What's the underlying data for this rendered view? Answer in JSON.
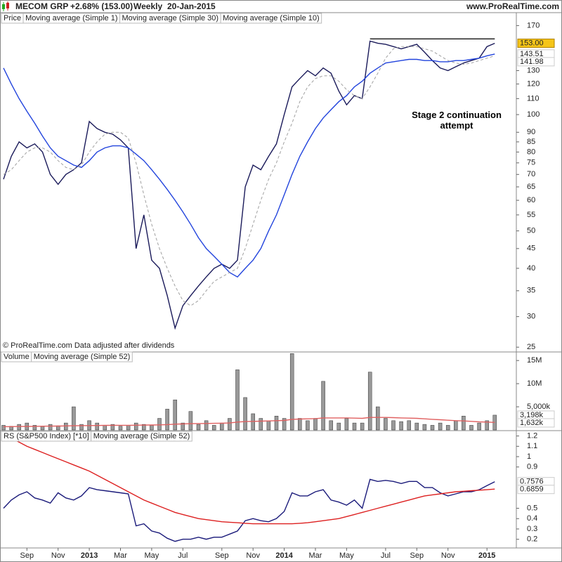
{
  "header": {
    "name": "MECOM GRP",
    "change": "+2.68% (153.00)",
    "period": "Weekly",
    "date": "20-Jan-2015",
    "site": "www.ProRealTime.com"
  },
  "chart_data": [
    {
      "type": "line",
      "label": "Price",
      "log_scale": true,
      "ylim": [
        24.4,
        171
      ],
      "yticks": [
        25,
        30,
        35,
        40,
        45,
        50,
        55,
        60,
        65,
        70,
        75,
        80,
        85,
        90,
        100,
        110,
        120,
        130,
        170
      ],
      "annotation": "Stage 2 continuation attempt",
      "footnote": "© ProRealTime.com  Data adjusted after dividends",
      "resistance": 157,
      "series": [
        {
          "name": "Moving average (Simple 1)",
          "color": "#1a1a5a",
          "last_label": "153.00",
          "label_background": "#f5c518",
          "values": [
            68,
            78,
            85,
            82,
            84,
            80,
            70,
            66,
            70,
            72,
            75,
            96,
            92,
            90,
            89,
            86,
            82,
            45,
            55,
            42,
            40,
            34,
            28,
            32,
            34,
            36,
            38,
            40,
            41,
            40,
            42,
            65,
            74,
            72,
            78,
            84,
            100,
            118,
            124,
            130,
            126,
            132,
            128,
            115,
            106,
            112,
            110,
            155,
            153,
            152,
            150,
            148,
            150,
            152,
            145,
            138,
            132,
            130,
            133,
            136,
            138,
            140,
            150,
            153
          ]
        },
        {
          "name": "Moving average (Simple 30)",
          "color": "#2244dd",
          "last_label": "143.51",
          "values": [
            132,
            120,
            110,
            102,
            95,
            88,
            82,
            78,
            76,
            74,
            73,
            76,
            80,
            82,
            83,
            83,
            82,
            79,
            76,
            72,
            68,
            64,
            60,
            56,
            52,
            48,
            45,
            43,
            41,
            39,
            38,
            40,
            42,
            45,
            50,
            55,
            62,
            70,
            78,
            85,
            92,
            98,
            103,
            108,
            112,
            118,
            122,
            128,
            132,
            136,
            137,
            138,
            139,
            139,
            138,
            138,
            137,
            137,
            138,
            138,
            139,
            140,
            142,
            143.51
          ]
        },
        {
          "name": "Moving average (Simple 10)",
          "color": "#a0a0a0",
          "dashed": true,
          "last_label": "141.98",
          "values": [
            70,
            72,
            76,
            80,
            82,
            82,
            80,
            76,
            73,
            72,
            74,
            80,
            85,
            89,
            90,
            90,
            87,
            75,
            62,
            52,
            45,
            40,
            36,
            33,
            32,
            33,
            35,
            37,
            38,
            39,
            40,
            45,
            52,
            60,
            68,
            75,
            85,
            95,
            108,
            118,
            124,
            126,
            126,
            122,
            116,
            112,
            110,
            118,
            128,
            140,
            148,
            150,
            150,
            150,
            148,
            146,
            142,
            138,
            136,
            135,
            136,
            138,
            140,
            141.98
          ]
        }
      ]
    },
    {
      "type": "bar",
      "ylim": [
        0,
        16700000
      ],
      "yticks": [
        {
          "value": 5000000,
          "label": "5,000k"
        },
        {
          "value": 10000000,
          "label": "10M"
        },
        {
          "value": 15000000,
          "label": "15M"
        }
      ],
      "series": [
        {
          "name": "Volume",
          "color": "#999999",
          "last_label": "3,198k",
          "values": [
            1000000,
            800000,
            1200000,
            1500000,
            1000000,
            800000,
            1200000,
            900000,
            1500000,
            5000000,
            1200000,
            2000000,
            1500000,
            1000000,
            1200000,
            800000,
            1000000,
            1500000,
            1200000,
            1000000,
            2500000,
            4500000,
            6500000,
            1500000,
            4000000,
            1200000,
            2000000,
            1000000,
            1500000,
            2500000,
            13000000,
            7000000,
            3500000,
            2500000,
            2000000,
            3000000,
            2500000,
            16500000,
            2500000,
            2000000,
            2500000,
            10500000,
            2000000,
            1500000,
            2500000,
            1500000,
            1500000,
            12500000,
            5000000,
            2500000,
            2000000,
            1800000,
            2000000,
            1500000,
            1200000,
            1000000,
            1500000,
            1000000,
            2000000,
            3000000,
            1000000,
            1500000,
            2000000,
            3198000
          ]
        },
        {
          "name": "Moving average (Simple 52)",
          "color": "#e06060",
          "type": "line",
          "last_label": "1,632k",
          "values": [
            700000,
            720000,
            740000,
            760000,
            780000,
            800000,
            820000,
            840000,
            860000,
            900000,
            920000,
            940000,
            960000,
            980000,
            1000000,
            1000000,
            1000000,
            1020000,
            1040000,
            1060000,
            1100000,
            1150000,
            1250000,
            1300000,
            1350000,
            1380000,
            1400000,
            1420000,
            1450000,
            1500000,
            1700000,
            1800000,
            1850000,
            1900000,
            1950000,
            2000000,
            2050000,
            2300000,
            2350000,
            2400000,
            2450000,
            2600000,
            2600000,
            2600000,
            2600000,
            2550000,
            2500000,
            2700000,
            2700000,
            2700000,
            2650000,
            2600000,
            2550000,
            2500000,
            2400000,
            2300000,
            2200000,
            2100000,
            2000000,
            1950000,
            1850000,
            1750000,
            1700000,
            1632000
          ]
        }
      ]
    },
    {
      "type": "line",
      "ylim": [
        0.116,
        1.245
      ],
      "yticks": [
        0.2,
        0.3,
        0.4,
        0.5,
        0.9,
        1,
        1.1,
        1.2
      ],
      "categories": [
        null,
        null,
        null,
        "Sep",
        null,
        null,
        null,
        "Nov",
        null,
        null,
        null,
        "2013",
        null,
        null,
        null,
        "Mar",
        null,
        null,
        null,
        "May",
        null,
        null,
        null,
        "Jul",
        null,
        null,
        null,
        null,
        "Sep",
        null,
        null,
        null,
        "Nov",
        null,
        null,
        null,
        "2014",
        null,
        null,
        null,
        "Mar",
        null,
        null,
        null,
        "May",
        null,
        null,
        null,
        null,
        "Jul",
        null,
        null,
        null,
        "Sep",
        null,
        null,
        null,
        "Nov",
        null,
        null,
        null,
        null,
        "2015",
        null
      ],
      "series": [
        {
          "name": "RS (S&P500 Index) [*10]",
          "color": "#1a1a7a",
          "last_label": "0.7576",
          "values": [
            0.5,
            0.58,
            0.63,
            0.66,
            0.6,
            0.58,
            0.55,
            0.65,
            0.6,
            0.58,
            0.62,
            0.7,
            0.68,
            0.67,
            0.66,
            0.65,
            0.64,
            0.33,
            0.35,
            0.28,
            0.26,
            0.21,
            0.18,
            0.2,
            0.2,
            0.22,
            0.2,
            0.22,
            0.22,
            0.25,
            0.28,
            0.38,
            0.4,
            0.38,
            0.37,
            0.4,
            0.47,
            0.65,
            0.62,
            0.62,
            0.66,
            0.68,
            0.58,
            0.56,
            0.53,
            0.58,
            0.5,
            0.78,
            0.76,
            0.77,
            0.76,
            0.74,
            0.76,
            0.76,
            0.7,
            0.7,
            0.65,
            0.62,
            0.64,
            0.66,
            0.66,
            0.68,
            0.72,
            0.7576
          ]
        },
        {
          "name": "Moving average (Simple 52)",
          "color": "#dd2020",
          "last_label": "0.6859",
          "values": [
            1.22,
            1.18,
            1.14,
            1.1,
            1.07,
            1.04,
            1.01,
            0.98,
            0.95,
            0.92,
            0.89,
            0.86,
            0.82,
            0.78,
            0.74,
            0.7,
            0.66,
            0.62,
            0.58,
            0.55,
            0.52,
            0.49,
            0.46,
            0.44,
            0.42,
            0.4,
            0.39,
            0.38,
            0.37,
            0.365,
            0.36,
            0.355,
            0.35,
            0.35,
            0.35,
            0.35,
            0.35,
            0.35,
            0.355,
            0.36,
            0.37,
            0.38,
            0.39,
            0.4,
            0.42,
            0.44,
            0.46,
            0.48,
            0.5,
            0.52,
            0.54,
            0.56,
            0.58,
            0.6,
            0.62,
            0.63,
            0.64,
            0.65,
            0.66,
            0.665,
            0.67,
            0.675,
            0.68,
            0.6859
          ]
        }
      ]
    }
  ]
}
